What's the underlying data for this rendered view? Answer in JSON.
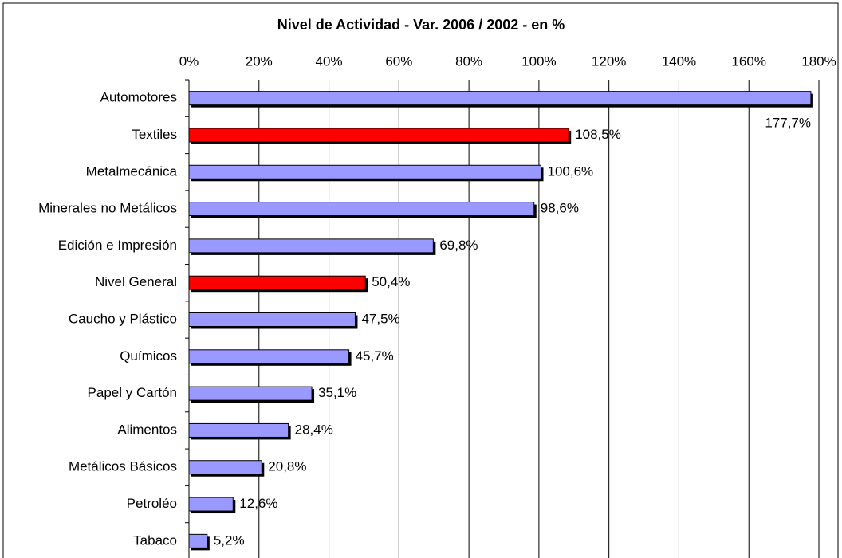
{
  "chart_data": {
    "type": "hbar",
    "title": "Nivel de Actividad - Var. 2006 / 2002 - en %",
    "categories": [
      "Automotores",
      "Textiles",
      "Metalmecánica",
      "Minerales no Metálicos",
      "Edición e Impresión",
      "Nivel General",
      "Caucho y Plástico",
      "Químicos",
      "Papel y Cartón",
      "Alimentos",
      "Metálicos Básicos",
      "Petroléo",
      "Tabaco"
    ],
    "values": [
      177.7,
      108.5,
      100.6,
      98.6,
      69.8,
      50.4,
      47.5,
      45.7,
      35.1,
      28.4,
      20.8,
      12.6,
      5.2
    ],
    "value_labels": [
      "177,7%",
      "108,5%",
      "100,6%",
      "98,6%",
      "69,8%",
      "50,4%",
      "47,5%",
      "45,7%",
      "35,1%",
      "28,4%",
      "20,8%",
      "12,6%",
      "5,2%"
    ],
    "colors": [
      "#9999ff",
      "#ff0000",
      "#9999ff",
      "#9999ff",
      "#9999ff",
      "#ff0000",
      "#9999ff",
      "#9999ff",
      "#9999ff",
      "#9999ff",
      "#9999ff",
      "#9999ff",
      "#9999ff"
    ],
    "xlim": [
      0,
      180
    ],
    "xticks": [
      {
        "value": 0,
        "label": "0%"
      },
      {
        "value": 20,
        "label": "20%"
      },
      {
        "value": 40,
        "label": "40%"
      },
      {
        "value": 60,
        "label": "60%"
      },
      {
        "value": 80,
        "label": "80%"
      },
      {
        "value": 100,
        "label": "100%"
      },
      {
        "value": 120,
        "label": "120%"
      },
      {
        "value": 140,
        "label": "140%"
      },
      {
        "value": 160,
        "label": "160%"
      },
      {
        "value": 180,
        "label": "180%"
      }
    ],
    "grid": true
  }
}
